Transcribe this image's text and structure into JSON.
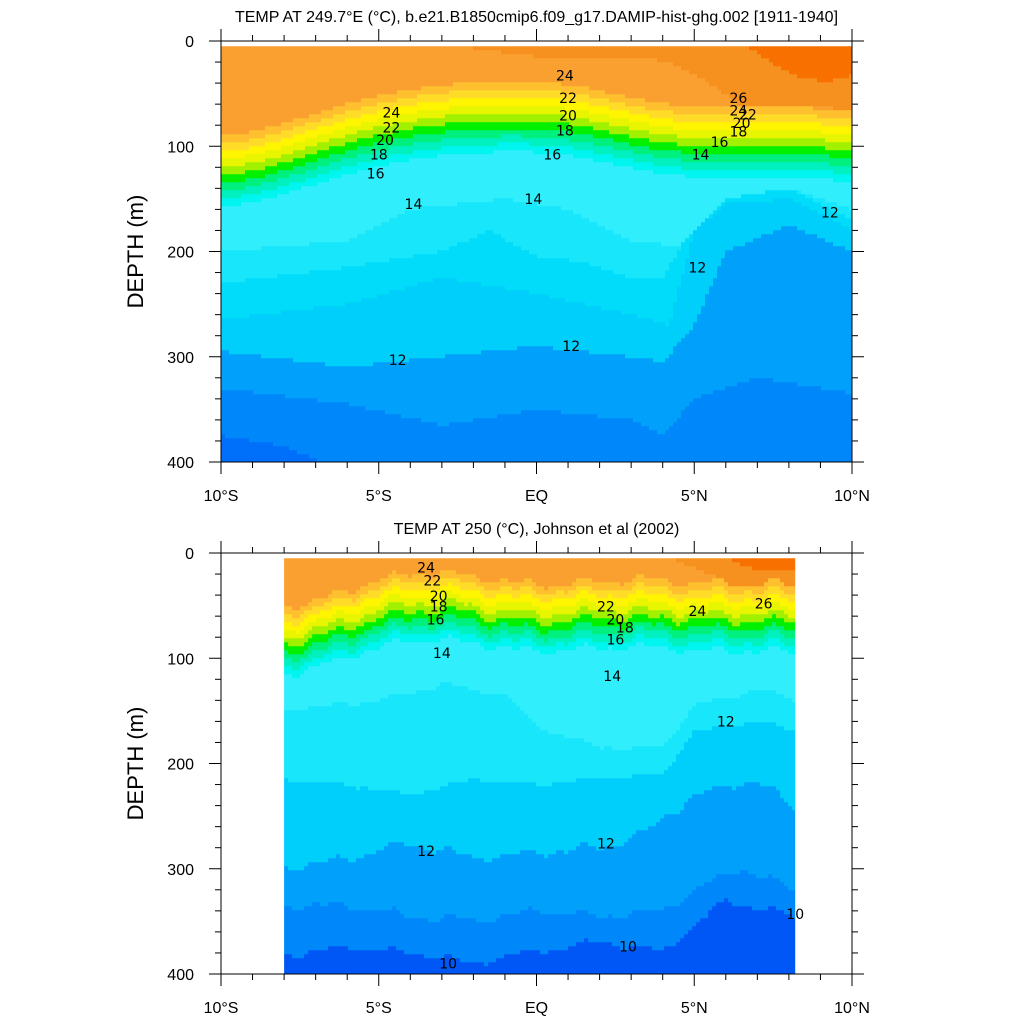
{
  "chart_data": [
    {
      "type": "heatmap",
      "title": "TEMP AT 249.7°E (°C), b.e21.B1850cmip6.f09_g17.DAMIP-hist-ghg.002 [1911-1940]",
      "xlabel": "",
      "ylabel": "DEPTH (m)",
      "xlim": [
        -10,
        10
      ],
      "ylim": [
        400,
        0
      ],
      "x_ticks": [
        -10,
        -5,
        0,
        5,
        10
      ],
      "x_tick_labels": [
        "10°S",
        "5°S",
        "EQ",
        "5°N",
        "10°N"
      ],
      "y_ticks": [
        0,
        100,
        200,
        300,
        400
      ],
      "y_tick_labels": [
        "0",
        "100",
        "200",
        "300",
        "400"
      ],
      "data_extent": [
        -10,
        10
      ],
      "contour_levels_c": [
        9.5,
        10,
        10.5,
        11,
        11.5,
        12,
        12.5,
        13,
        13.5,
        14,
        15,
        16,
        17,
        18,
        19,
        20,
        21,
        22,
        23,
        24,
        25,
        26,
        27
      ],
      "contour_labels": [
        {
          "text": "24",
          "lat": -4.6,
          "depth": 68
        },
        {
          "text": "22",
          "lat": -4.6,
          "depth": 82
        },
        {
          "text": "20",
          "lat": -4.8,
          "depth": 94
        },
        {
          "text": "18",
          "lat": -5.0,
          "depth": 108
        },
        {
          "text": "16",
          "lat": -5.1,
          "depth": 126
        },
        {
          "text": "14",
          "lat": -3.9,
          "depth": 155
        },
        {
          "text": "24",
          "lat": 0.9,
          "depth": 33
        },
        {
          "text": "22",
          "lat": 1.0,
          "depth": 54
        },
        {
          "text": "20",
          "lat": 1.0,
          "depth": 71
        },
        {
          "text": "18",
          "lat": 0.9,
          "depth": 85
        },
        {
          "text": "16",
          "lat": 0.5,
          "depth": 108
        },
        {
          "text": "14",
          "lat": -0.1,
          "depth": 150
        },
        {
          "text": "26",
          "lat": 6.4,
          "depth": 54
        },
        {
          "text": "24",
          "lat": 6.4,
          "depth": 66
        },
        {
          "text": "22",
          "lat": 6.7,
          "depth": 70
        },
        {
          "text": "20",
          "lat": 6.5,
          "depth": 78
        },
        {
          "text": "18",
          "lat": 6.4,
          "depth": 86
        },
        {
          "text": "16",
          "lat": 5.8,
          "depth": 96
        },
        {
          "text": "14",
          "lat": 5.2,
          "depth": 108
        },
        {
          "text": "12",
          "lat": 9.3,
          "depth": 163
        },
        {
          "text": "12",
          "lat": 5.1,
          "depth": 215
        },
        {
          "text": "12",
          "lat": -4.4,
          "depth": 303
        },
        {
          "text": "12",
          "lat": 1.1,
          "depth": 290
        }
      ]
    },
    {
      "type": "heatmap",
      "title": "TEMP AT 250 (°C), Johnson et al (2002)",
      "xlabel": "",
      "ylabel": "DEPTH (m)",
      "xlim": [
        -10,
        10
      ],
      "ylim": [
        400,
        0
      ],
      "x_ticks": [
        -10,
        -5,
        0,
        5,
        10
      ],
      "x_tick_labels": [
        "10°S",
        "5°S",
        "EQ",
        "5°N",
        "10°N"
      ],
      "y_ticks": [
        0,
        100,
        200,
        300,
        400
      ],
      "y_tick_labels": [
        "0",
        "100",
        "200",
        "300",
        "400"
      ],
      "data_extent": [
        -8,
        8.2
      ],
      "contour_levels_c": [
        9.5,
        10,
        10.5,
        11,
        11.5,
        12,
        12.5,
        13,
        13.5,
        14,
        15,
        16,
        17,
        18,
        19,
        20,
        21,
        22,
        23,
        24,
        25,
        26,
        27
      ],
      "contour_labels": [
        {
          "text": "24",
          "lat": -3.5,
          "depth": 14
        },
        {
          "text": "22",
          "lat": -3.3,
          "depth": 26
        },
        {
          "text": "20",
          "lat": -3.1,
          "depth": 41
        },
        {
          "text": "18",
          "lat": -3.1,
          "depth": 51
        },
        {
          "text": "16",
          "lat": -3.2,
          "depth": 63
        },
        {
          "text": "14",
          "lat": -3.0,
          "depth": 95
        },
        {
          "text": "22",
          "lat": 2.2,
          "depth": 51
        },
        {
          "text": "20",
          "lat": 2.5,
          "depth": 63
        },
        {
          "text": "18",
          "lat": 2.8,
          "depth": 71
        },
        {
          "text": "16",
          "lat": 2.5,
          "depth": 82
        },
        {
          "text": "14",
          "lat": 2.4,
          "depth": 117
        },
        {
          "text": "24",
          "lat": 5.1,
          "depth": 55
        },
        {
          "text": "26",
          "lat": 7.2,
          "depth": 48
        },
        {
          "text": "12",
          "lat": 6.0,
          "depth": 160
        },
        {
          "text": "12",
          "lat": -3.5,
          "depth": 283
        },
        {
          "text": "12",
          "lat": 2.2,
          "depth": 276
        },
        {
          "text": "10",
          "lat": -2.8,
          "depth": 390
        },
        {
          "text": "10",
          "lat": 2.9,
          "depth": 374
        },
        {
          "text": "10",
          "lat": 8.2,
          "depth": 343
        }
      ]
    }
  ]
}
